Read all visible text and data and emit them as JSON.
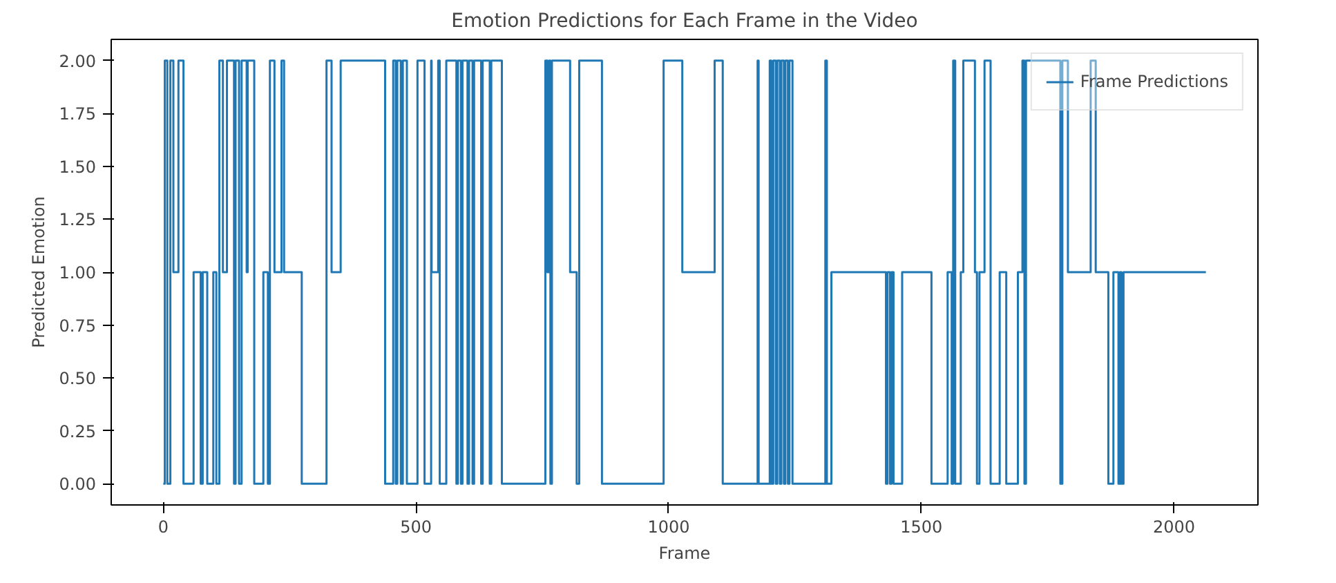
{
  "chart_data": {
    "type": "step",
    "title": "Emotion Predictions for Each Frame in the Video",
    "xlabel": "Frame",
    "ylabel": "Predicted Emotion",
    "series": [
      {
        "name": "Frame Predictions",
        "color": "#1f77b4",
        "x": [
          0,
          3,
          8,
          14,
          20,
          30,
          40,
          60,
          74,
          78,
          87,
          99,
          105,
          111,
          118,
          126,
          140,
          143,
          150,
          155,
          165,
          167,
          180,
          198,
          207,
          211,
          220,
          234,
          239,
          274,
          323,
          333,
          351,
          439,
          455,
          460,
          463,
          470,
          474,
          482,
          486,
          503,
          517,
          530,
          531,
          544,
          547,
          560,
          580,
          583,
          589,
          592,
          602,
          605,
          612,
          615,
          629,
          632,
          646,
          649,
          670,
          756,
          760,
          763,
          766,
          769,
          805,
          818,
          823,
          868,
          990,
          1027,
          1091,
          1107,
          1176,
          1178,
          1200,
          1203,
          1207,
          1212,
          1215,
          1220,
          1223,
          1228,
          1231,
          1236,
          1239,
          1245,
          1310,
          1313,
          1322,
          1430,
          1433,
          1438,
          1441,
          1445,
          1462,
          1520,
          1552,
          1560,
          1563,
          1567,
          1578,
          1583,
          1606,
          1610,
          1615,
          1625,
          1637,
          1655,
          1668,
          1691,
          1700,
          1704,
          1707,
          1775,
          1779,
          1790,
          1835,
          1845,
          1870,
          1880,
          1890,
          1893,
          1896,
          1900,
          2063
        ],
        "values": [
          0,
          2,
          0,
          2,
          1,
          2,
          0,
          1,
          0,
          1,
          0,
          1,
          0,
          2,
          1,
          2,
          0,
          2,
          0,
          2,
          1,
          2,
          0,
          1,
          0,
          2,
          1,
          2,
          1,
          0,
          2,
          1,
          2,
          0,
          2,
          0,
          2,
          0,
          2,
          0,
          0,
          2,
          0,
          2,
          1,
          2,
          0,
          2,
          0,
          2,
          0,
          2,
          0,
          2,
          0,
          2,
          0,
          2,
          0,
          2,
          0,
          2,
          1,
          2,
          0,
          2,
          1,
          0,
          2,
          0,
          2,
          1,
          2,
          0,
          2,
          0,
          2,
          0,
          2,
          0,
          2,
          0,
          2,
          0,
          2,
          0,
          2,
          0,
          2,
          0,
          1,
          0,
          1,
          0,
          1,
          0,
          1,
          0,
          1,
          0,
          2,
          0,
          1,
          2,
          1,
          0,
          1,
          2,
          0,
          1,
          0,
          1,
          2,
          0,
          2,
          0,
          2,
          1,
          2,
          1,
          0,
          1,
          0,
          1,
          0,
          1,
          1
        ]
      }
    ],
    "xlim": [
      -103,
      2166
    ],
    "ylim": [
      -0.1,
      2.1
    ],
    "xticks": [
      0,
      500,
      1000,
      1500,
      2000
    ],
    "yticks": [
      {
        "value": 0,
        "label": "0.00"
      },
      {
        "value": 0.25,
        "label": "0.25"
      },
      {
        "value": 0.5,
        "label": "0.50"
      },
      {
        "value": 0.75,
        "label": "0.75"
      },
      {
        "value": 1,
        "label": "1.00"
      },
      {
        "value": 1.25,
        "label": "1.25"
      },
      {
        "value": 1.5,
        "label": "1.50"
      },
      {
        "value": 1.75,
        "label": "1.75"
      },
      {
        "value": 2,
        "label": "2.00"
      }
    ],
    "legend": "top right"
  }
}
